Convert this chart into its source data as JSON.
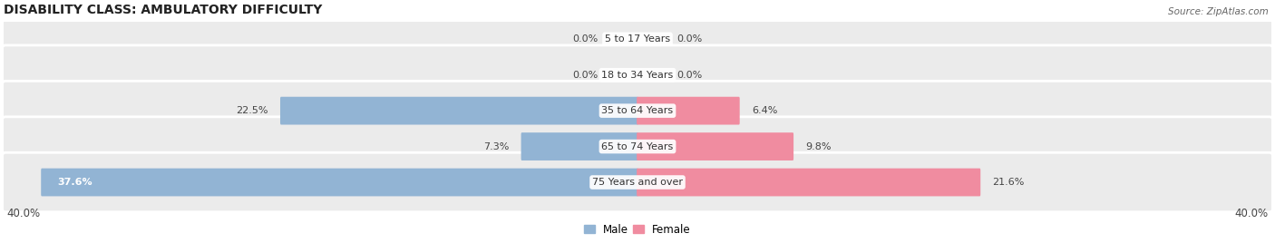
{
  "title": "DISABILITY CLASS: AMBULATORY DIFFICULTY",
  "source": "Source: ZipAtlas.com",
  "categories": [
    "5 to 17 Years",
    "18 to 34 Years",
    "35 to 64 Years",
    "65 to 74 Years",
    "75 Years and over"
  ],
  "male_values": [
    0.0,
    0.0,
    22.5,
    7.3,
    37.6
  ],
  "female_values": [
    0.0,
    0.0,
    6.4,
    9.8,
    21.6
  ],
  "max_val": 40.0,
  "male_color": "#92b4d4",
  "female_color": "#f08ca0",
  "row_bg_color": "#ebebeb",
  "row_alt_color": "#e0e0e0",
  "label_color": "#444444",
  "title_fontsize": 10,
  "label_fontsize": 8.0,
  "cat_fontsize": 8.0,
  "tick_fontsize": 8.5,
  "x_axis_left_label": "40.0%",
  "x_axis_right_label": "40.0%"
}
